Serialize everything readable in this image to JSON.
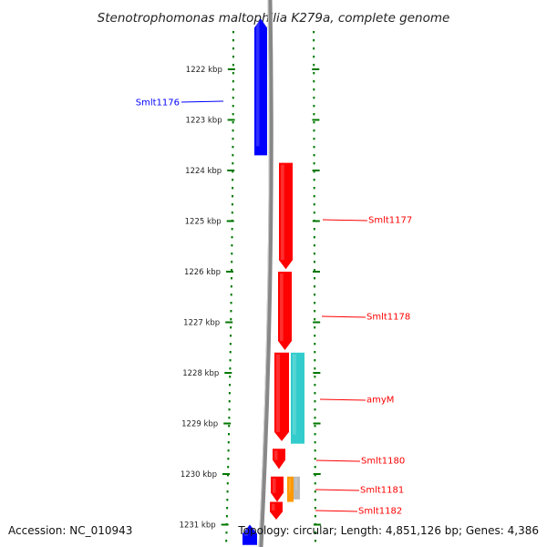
{
  "title": "Stenotrophomonas maltophilia K279a, complete genome",
  "footer": {
    "accession": "Accession: NC_010943",
    "topology": "Topology: circular; Length: 4,851,126 bp; Genes: 4,386"
  },
  "colors": {
    "reverse_strand": "#0000ff",
    "forward_strand": "#ff0000",
    "cyan_feature": "#33cccc",
    "orange_feature": "#ff9900",
    "grey_feature": "#bbbbbb",
    "steelblue_feature": "#4682b4",
    "ruler_dots": "#007700",
    "backbone": "#888888"
  },
  "ruler": {
    "unit": "kbp",
    "ticks": [
      {
        "kbp": 1222,
        "label": "1222 kbp"
      },
      {
        "kbp": 1223,
        "label": "1223 kbp"
      },
      {
        "kbp": 1224,
        "label": "1224 kbp"
      },
      {
        "kbp": 1225,
        "label": "1225 kbp"
      },
      {
        "kbp": 1226,
        "label": "1226 kbp"
      },
      {
        "kbp": 1227,
        "label": "1227 kbp"
      },
      {
        "kbp": 1228,
        "label": "1228 kbp"
      },
      {
        "kbp": 1229,
        "label": "1229 kbp"
      },
      {
        "kbp": 1230,
        "label": "1230 kbp"
      },
      {
        "kbp": 1231,
        "label": "1231 kbp"
      }
    ]
  },
  "chart_data": {
    "type": "genome-map",
    "title": "Stenotrophomonas maltophilia K279a, complete genome",
    "visible_range_kbp": [
      1221.2,
      1231.4
    ],
    "genes": [
      {
        "label": "Smlt1176",
        "start_kbp": 1221.0,
        "end_kbp": 1223.7,
        "strand": "reverse",
        "color": "blue"
      },
      {
        "label": "Smlt1177",
        "start_kbp": 1223.85,
        "end_kbp": 1225.95,
        "strand": "forward",
        "color": "red"
      },
      {
        "label": "Smlt1178",
        "start_kbp": 1226.0,
        "end_kbp": 1227.55,
        "strand": "forward",
        "color": "red"
      },
      {
        "label": "amyM",
        "start_kbp": 1227.6,
        "end_kbp": 1229.35,
        "strand": "forward",
        "color": "red"
      },
      {
        "label": "Smlt1180",
        "start_kbp": 1229.5,
        "end_kbp": 1229.9,
        "strand": "forward",
        "color": "red"
      },
      {
        "label": "Smlt1181",
        "start_kbp": 1230.05,
        "end_kbp": 1230.55,
        "strand": "forward",
        "color": "red"
      },
      {
        "label": "Smlt1182",
        "start_kbp": 1230.55,
        "end_kbp": 1230.9,
        "strand": "forward",
        "color": "red"
      }
    ],
    "other_features": [
      {
        "start_kbp": 1227.6,
        "end_kbp": 1229.4,
        "color": "cyan"
      },
      {
        "start_kbp": 1230.05,
        "end_kbp": 1230.55,
        "color": "orange"
      },
      {
        "start_kbp": 1230.05,
        "end_kbp": 1230.5,
        "color": "grey"
      },
      {
        "start_kbp": 1231.0,
        "end_kbp": 1231.4,
        "strand": "reverse",
        "color": "blue"
      }
    ]
  }
}
